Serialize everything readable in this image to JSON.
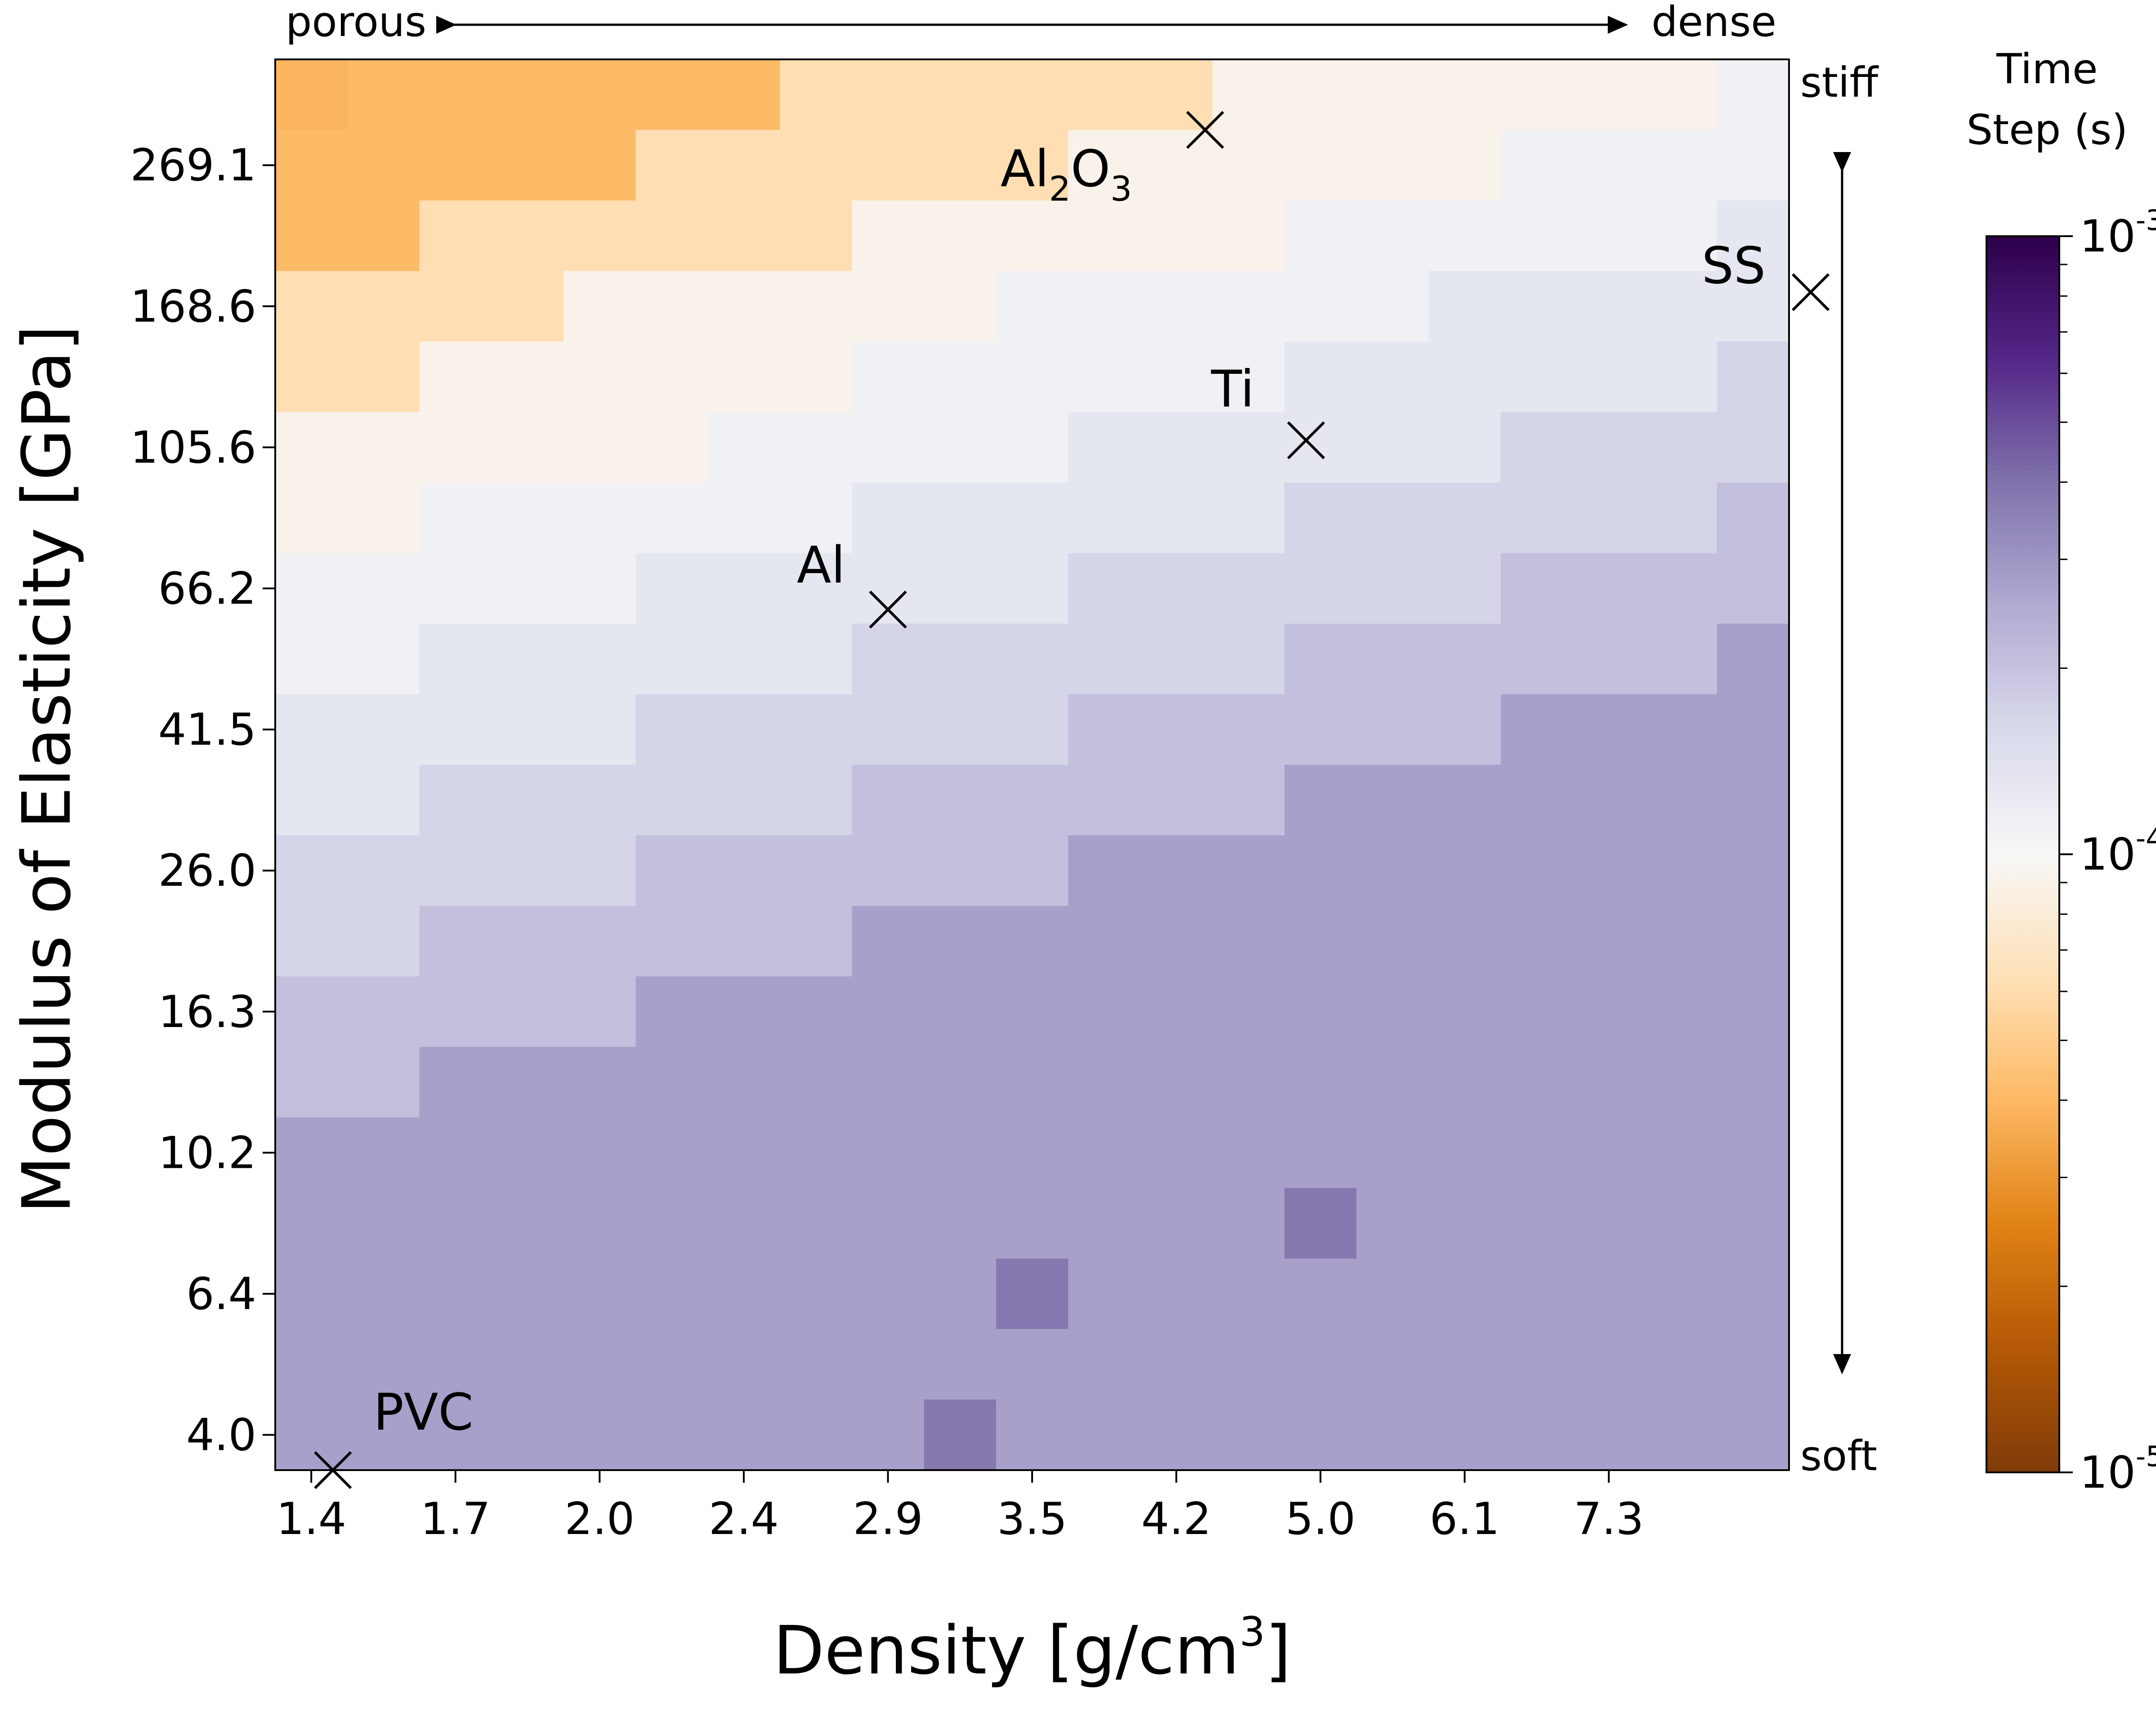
{
  "chart_data": {
    "type": "heatmap",
    "x_label": "Density [g/cm",
    "x_label_superscript": "3",
    "x_label_close": "]",
    "y_label": "Modulus of Elasticity [GPa]",
    "x_tick_labels": [
      "1.4",
      "1.7",
      "2.0",
      "2.4",
      "2.9",
      "3.5",
      "4.2",
      "5.0",
      "6.1",
      "7.3"
    ],
    "y_tick_labels": [
      "269.1",
      "168.6",
      "105.6",
      "66.2",
      "41.5",
      "26.0",
      "16.3",
      "10.2",
      "6.4",
      "4.0"
    ],
    "top_left_label": "porous",
    "top_right_label": "dense",
    "right_top_label": "stiff",
    "right_bottom_label": "soft",
    "colorbar": {
      "title_line1": "Time",
      "title_line2": "Step (s)",
      "scale": "log",
      "range": [
        1e-05,
        0.001
      ],
      "ticks": [
        {
          "value": 0.001,
          "base": "10",
          "exp": "-3"
        },
        {
          "value": 0.0001,
          "base": "10",
          "exp": "-4"
        },
        {
          "value": 1e-05,
          "base": "10",
          "exp": "-5"
        }
      ],
      "colormap": [
        "#7f3b08",
        "#b35806",
        "#e08214",
        "#fdb863",
        "#fee0b6",
        "#f7f7f7",
        "#d8daeb",
        "#b2abd2",
        "#8073ac",
        "#542788",
        "#2d004b"
      ]
    },
    "grid": {
      "rows": 20,
      "cols": 21,
      "value_unit": "s",
      "row_order": "top (stiff) to bottom (soft)",
      "log10_time_step": [
        [
          -4.41,
          -4.39,
          -4.39,
          -4.39,
          -4.39,
          -4.39,
          -4.39,
          -4.21,
          -4.21,
          -4.21,
          -4.21,
          -4.21,
          -4.21,
          -4.04,
          -4.04,
          -4.04,
          -4.04,
          -4.04,
          -4.04,
          -4.04,
          -3.96
        ],
        [
          -4.39,
          -4.39,
          -4.39,
          -4.39,
          -4.39,
          -4.21,
          -4.21,
          -4.21,
          -4.21,
          -4.21,
          -4.21,
          -4.04,
          -4.04,
          -4.04,
          -4.04,
          -4.04,
          -4.04,
          -3.96,
          -3.96,
          -3.96,
          -3.96
        ],
        [
          -4.39,
          -4.39,
          -4.21,
          -4.21,
          -4.21,
          -4.21,
          -4.21,
          -4.21,
          -4.04,
          -4.04,
          -4.04,
          -4.04,
          -4.04,
          -4.04,
          -3.96,
          -3.96,
          -3.96,
          -3.96,
          -3.96,
          -3.96,
          -3.88
        ],
        [
          -4.21,
          -4.21,
          -4.21,
          -4.21,
          -4.04,
          -4.04,
          -4.04,
          -4.04,
          -4.04,
          -4.04,
          -3.96,
          -3.96,
          -3.96,
          -3.96,
          -3.96,
          -3.96,
          -3.88,
          -3.88,
          -3.88,
          -3.88,
          -3.88
        ],
        [
          -4.21,
          -4.21,
          -4.04,
          -4.04,
          -4.04,
          -4.04,
          -4.04,
          -4.04,
          -3.96,
          -3.96,
          -3.96,
          -3.96,
          -3.96,
          -3.96,
          -3.88,
          -3.88,
          -3.88,
          -3.88,
          -3.88,
          -3.88,
          -3.78
        ],
        [
          -4.04,
          -4.04,
          -4.04,
          -4.04,
          -4.04,
          -4.04,
          -3.96,
          -3.96,
          -3.96,
          -3.96,
          -3.96,
          -3.88,
          -3.88,
          -3.88,
          -3.88,
          -3.88,
          -3.88,
          -3.78,
          -3.78,
          -3.78,
          -3.78
        ],
        [
          -4.04,
          -4.04,
          -3.96,
          -3.96,
          -3.96,
          -3.96,
          -3.96,
          -3.96,
          -3.88,
          -3.88,
          -3.88,
          -3.88,
          -3.88,
          -3.88,
          -3.78,
          -3.78,
          -3.78,
          -3.78,
          -3.78,
          -3.78,
          -3.69
        ],
        [
          -3.96,
          -3.96,
          -3.96,
          -3.96,
          -3.96,
          -3.88,
          -3.88,
          -3.88,
          -3.88,
          -3.88,
          -3.88,
          -3.78,
          -3.78,
          -3.78,
          -3.78,
          -3.78,
          -3.78,
          -3.69,
          -3.69,
          -3.69,
          -3.69
        ],
        [
          -3.96,
          -3.96,
          -3.88,
          -3.88,
          -3.88,
          -3.88,
          -3.88,
          -3.88,
          -3.78,
          -3.78,
          -3.78,
          -3.78,
          -3.78,
          -3.78,
          -3.69,
          -3.69,
          -3.69,
          -3.69,
          -3.69,
          -3.69,
          -3.56
        ],
        [
          -3.88,
          -3.88,
          -3.88,
          -3.88,
          -3.88,
          -3.78,
          -3.78,
          -3.78,
          -3.78,
          -3.78,
          -3.78,
          -3.69,
          -3.69,
          -3.69,
          -3.69,
          -3.69,
          -3.69,
          -3.56,
          -3.56,
          -3.56,
          -3.56
        ],
        [
          -3.88,
          -3.88,
          -3.78,
          -3.78,
          -3.78,
          -3.78,
          -3.78,
          -3.78,
          -3.69,
          -3.69,
          -3.69,
          -3.69,
          -3.69,
          -3.69,
          -3.56,
          -3.56,
          -3.56,
          -3.56,
          -3.56,
          -3.56,
          -3.56
        ],
        [
          -3.78,
          -3.78,
          -3.78,
          -3.78,
          -3.78,
          -3.69,
          -3.69,
          -3.69,
          -3.69,
          -3.69,
          -3.69,
          -3.56,
          -3.56,
          -3.56,
          -3.56,
          -3.56,
          -3.56,
          -3.56,
          -3.56,
          -3.56,
          -3.56
        ],
        [
          -3.78,
          -3.78,
          -3.69,
          -3.69,
          -3.69,
          -3.69,
          -3.69,
          -3.69,
          -3.56,
          -3.56,
          -3.56,
          -3.56,
          -3.56,
          -3.56,
          -3.56,
          -3.56,
          -3.56,
          -3.56,
          -3.56,
          -3.56,
          -3.56
        ],
        [
          -3.69,
          -3.69,
          -3.69,
          -3.69,
          -3.69,
          -3.56,
          -3.56,
          -3.56,
          -3.56,
          -3.56,
          -3.56,
          -3.56,
          -3.56,
          -3.56,
          -3.56,
          -3.56,
          -3.56,
          -3.56,
          -3.56,
          -3.56,
          -3.56
        ],
        [
          -3.69,
          -3.69,
          -3.56,
          -3.56,
          -3.56,
          -3.56,
          -3.56,
          -3.56,
          -3.56,
          -3.56,
          -3.56,
          -3.56,
          -3.56,
          -3.56,
          -3.56,
          -3.56,
          -3.56,
          -3.56,
          -3.56,
          -3.56,
          -3.56
        ],
        [
          -3.56,
          -3.56,
          -3.56,
          -3.56,
          -3.56,
          -3.56,
          -3.56,
          -3.56,
          -3.56,
          -3.56,
          -3.56,
          -3.56,
          -3.56,
          -3.56,
          -3.56,
          -3.56,
          -3.56,
          -3.56,
          -3.56,
          -3.56,
          -3.56
        ],
        [
          -3.56,
          -3.56,
          -3.56,
          -3.56,
          -3.56,
          -3.56,
          -3.56,
          -3.56,
          -3.56,
          -3.56,
          -3.56,
          -3.56,
          -3.56,
          -3.56,
          -3.42,
          -3.56,
          -3.56,
          -3.56,
          -3.56,
          -3.56,
          -3.56
        ],
        [
          -3.56,
          -3.56,
          -3.56,
          -3.56,
          -3.56,
          -3.56,
          -3.56,
          -3.56,
          -3.56,
          -3.56,
          -3.42,
          -3.56,
          -3.56,
          -3.56,
          -3.56,
          -3.56,
          -3.56,
          -3.56,
          -3.56,
          -3.56,
          -3.56
        ],
        [
          -3.56,
          -3.56,
          -3.56,
          -3.56,
          -3.56,
          -3.56,
          -3.56,
          -3.56,
          -3.56,
          -3.56,
          -3.56,
          -3.56,
          -3.56,
          -3.56,
          -3.56,
          -3.56,
          -3.56,
          -3.56,
          -3.56,
          -3.56,
          -3.56
        ],
        [
          -3.56,
          -3.56,
          -3.56,
          -3.56,
          -3.56,
          -3.56,
          -3.56,
          -3.56,
          -3.56,
          -3.42,
          -3.56,
          -3.56,
          -3.56,
          -3.56,
          -3.56,
          -3.56,
          -3.56,
          -3.56,
          -3.56,
          -3.56,
          -3.56
        ]
      ]
    },
    "materials": [
      {
        "name": "PVC",
        "density_col": 0.3,
        "modulus_row": 19.5
      },
      {
        "name": "Al",
        "density_col": 8.0,
        "modulus_row": 7.3
      },
      {
        "name": "Ti",
        "density_col": 13.8,
        "modulus_row": 4.9
      },
      {
        "name": "SS",
        "density_col": 20.8,
        "modulus_row": 2.8
      },
      {
        "name": "Al",
        "subscript1": "2",
        "name_mid": "O",
        "subscript2": "3",
        "density_col": 12.4,
        "modulus_row": 0.5
      }
    ]
  }
}
